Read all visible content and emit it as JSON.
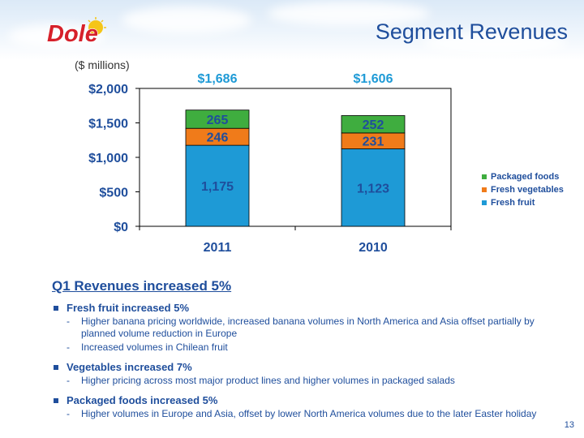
{
  "header": {
    "title": "Segment Revenues",
    "logo_text": "Dole"
  },
  "chart_data": {
    "type": "bar",
    "stacked": true,
    "subtitle": "($ millions)",
    "categories": [
      "2011",
      "2010"
    ],
    "totals": [
      "$1,686",
      "$1,606"
    ],
    "series": [
      {
        "name": "Fresh fruit",
        "values": [
          1175,
          1123
        ],
        "labels": [
          "1,175",
          "1,123"
        ],
        "color": "#1e9ad6"
      },
      {
        "name": "Fresh vegetables",
        "values": [
          246,
          231
        ],
        "labels": [
          "246",
          "231"
        ],
        "color": "#f07b1a"
      },
      {
        "name": "Packaged foods",
        "values": [
          265,
          252
        ],
        "labels": [
          "265",
          "252"
        ],
        "color": "#3fad3f"
      }
    ],
    "ylim": [
      0,
      2000
    ],
    "yticks": [
      0,
      500,
      1000,
      1500,
      2000
    ],
    "ytick_labels": [
      "$0",
      "$500",
      "$1,000",
      "$1,500",
      "$2,000"
    ],
    "legend_order": [
      "Packaged foods",
      "Fresh vegetables",
      "Fresh fruit"
    ],
    "legend_position": "right",
    "grid": false
  },
  "summary": {
    "title": "Q1 Revenues increased 5%",
    "items": [
      {
        "head": "Fresh fruit increased 5%",
        "subs": [
          "Higher banana pricing worldwide, increased banana volumes in North America and Asia offset partially by planned volume reduction in Europe",
          "Increased volumes in Chilean fruit"
        ]
      },
      {
        "head": "Vegetables increased 7%",
        "subs": [
          "Higher pricing across most major product lines and higher volumes in packaged salads"
        ]
      },
      {
        "head": "Packaged foods increased 5%",
        "subs": [
          "Higher volumes in Europe and Asia, offset by lower North America volumes due to the later Easter holiday"
        ]
      }
    ]
  },
  "footer": {
    "page": "13"
  },
  "colors": {
    "title_blue": "#1f4e9c",
    "total_blue": "#1e9ad6",
    "logo_red": "#d6202a"
  }
}
